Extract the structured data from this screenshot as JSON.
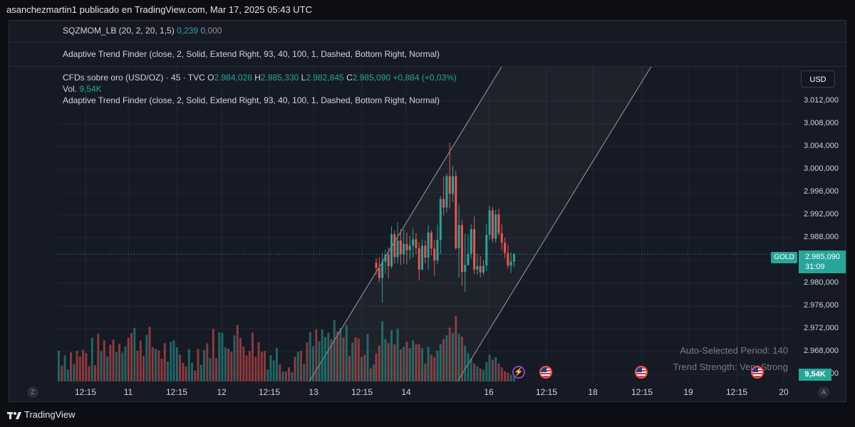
{
  "header": {
    "publisher_line": "asanchezmartin1 publicado en TradingView.com, Mar 17, 2025 05:43 UTC"
  },
  "indicator_panes": [
    {
      "name": "SQZMOM_LB (20, 2, 20, 1,5)",
      "value1": "0,239",
      "value2": "0,000"
    },
    {
      "name": "Adaptive Trend Finder (close, 2, Solid, Extend Right, 93, 40, 100, 1, Dashed, Bottom Right, Normal)"
    }
  ],
  "legend": {
    "symbol": "CFDs sobre oro (USD/OZ) · 45 · TVC",
    "o_label": "O",
    "o_value": "2.984,028",
    "h_label": "H",
    "h_value": "2.985,330",
    "l_label": "L",
    "l_value": "2.982,845",
    "c_label": "C",
    "c_value": "2.985,090",
    "change": "+0,884 (+0,03%)",
    "vol_label": "Vol.",
    "vol_value": "9,54K",
    "indicator": "Adaptive Trend Finder (close, 2, Solid, Extend Right, 93, 40, 100, 1, Dashed, Bottom Right, Normal)"
  },
  "price_axis": {
    "currency_button": "USD",
    "ticks": [
      "3.012,000",
      "3.008,000",
      "3.004,000",
      "3.000,000",
      "2.996,000",
      "2.992,000",
      "2.988,000",
      "2.984,000",
      "2.980,000",
      "2.976,000",
      "2.972,000",
      "2.968,000",
      "2.964,000"
    ],
    "current_price": "2.985,090",
    "countdown": "31:09",
    "symbol_tag": "GOLD",
    "volume_tag": "9,54K"
  },
  "time_axis": {
    "left_button": "Z",
    "right_button": "A",
    "labels": [
      "12:15",
      "11",
      "12:15",
      "12",
      "12:15",
      "13",
      "12:15",
      "14",
      "16",
      "12:15",
      "18",
      "12:15",
      "19",
      "12:15",
      "20"
    ]
  },
  "stats": {
    "period": "Auto-Selected Period: 140",
    "strength": "Trend Strength: Very Strong"
  },
  "footer": {
    "brand": "TradingView"
  },
  "colors": {
    "up": "#26a69a",
    "down": "#ef5350",
    "background": "#161a24",
    "grid": "#232734"
  },
  "icons": [
    "tradingview-logo-icon",
    "lightning-event-icon",
    "us-flag-event-icon"
  ],
  "chart_data": {
    "type": "candlestick",
    "x_axis": "time (45 min bars)",
    "ylim": [
      2962,
      3016
    ],
    "current_price": 2985.09,
    "candles": [
      {
        "o": 2983.6,
        "h": 2984.4,
        "l": 2981.5,
        "c": 2982.7,
        "v": 0.22
      },
      {
        "o": 2982.7,
        "h": 2984.6,
        "l": 2980.2,
        "c": 2980.9,
        "v": 0.28
      },
      {
        "o": 2980.9,
        "h": 2985.4,
        "l": 2976.6,
        "c": 2983.8,
        "v": 0.47
      },
      {
        "o": 2983.8,
        "h": 2985.9,
        "l": 2981.7,
        "c": 2985.0,
        "v": 0.33
      },
      {
        "o": 2985.0,
        "h": 2986.3,
        "l": 2980.8,
        "c": 2983.0,
        "v": 0.3
      },
      {
        "o": 2983.0,
        "h": 2990.0,
        "l": 2982.6,
        "c": 2988.6,
        "v": 0.4
      },
      {
        "o": 2988.6,
        "h": 2989.3,
        "l": 2983.4,
        "c": 2984.6,
        "v": 0.29
      },
      {
        "o": 2984.6,
        "h": 2990.7,
        "l": 2983.5,
        "c": 2987.5,
        "v": 0.41
      },
      {
        "o": 2987.5,
        "h": 2989.5,
        "l": 2983.2,
        "c": 2985.1,
        "v": 0.25
      },
      {
        "o": 2985.1,
        "h": 2989.5,
        "l": 2983.4,
        "c": 2986.9,
        "v": 0.27
      },
      {
        "o": 2986.9,
        "h": 2988.9,
        "l": 2983.3,
        "c": 2985.8,
        "v": 0.31
      },
      {
        "o": 2985.8,
        "h": 2988.3,
        "l": 2984.2,
        "c": 2986.6,
        "v": 0.26
      },
      {
        "o": 2986.6,
        "h": 2989.6,
        "l": 2984.5,
        "c": 2987.7,
        "v": 0.32
      },
      {
        "o": 2987.7,
        "h": 2988.8,
        "l": 2985.1,
        "c": 2986.2,
        "v": 0.29
      },
      {
        "o": 2986.2,
        "h": 2987.2,
        "l": 2980.5,
        "c": 2982.4,
        "v": 0.29
      },
      {
        "o": 2982.4,
        "h": 2987.7,
        "l": 2982.2,
        "c": 2986.6,
        "v": 0.26
      },
      {
        "o": 2986.6,
        "h": 2987.5,
        "l": 2983.5,
        "c": 2984.5,
        "v": 0.14
      },
      {
        "o": 2984.5,
        "h": 2990.2,
        "l": 2982.4,
        "c": 2988.9,
        "v": 0.27
      },
      {
        "o": 2988.9,
        "h": 2989.3,
        "l": 2984.9,
        "c": 2986.1,
        "v": 0.21
      },
      {
        "o": 2986.1,
        "h": 2987.5,
        "l": 2981.3,
        "c": 2984.0,
        "v": 0.19
      },
      {
        "o": 2984.0,
        "h": 2990.3,
        "l": 2983.4,
        "c": 2987.6,
        "v": 0.24
      },
      {
        "o": 2987.6,
        "h": 2995.3,
        "l": 2985.1,
        "c": 2994.8,
        "v": 0.29
      },
      {
        "o": 2994.8,
        "h": 2998.8,
        "l": 2991.9,
        "c": 2993.3,
        "v": 0.33
      },
      {
        "o": 2993.3,
        "h": 2999.3,
        "l": 2992.4,
        "c": 2998.8,
        "v": 0.36
      },
      {
        "o": 2998.8,
        "h": 3004.7,
        "l": 2993.1,
        "c": 2995.7,
        "v": 0.42
      },
      {
        "o": 2995.7,
        "h": 3000.6,
        "l": 2994.3,
        "c": 2998.8,
        "v": 0.38
      },
      {
        "o": 2998.8,
        "h": 2999.8,
        "l": 2985.9,
        "c": 2986.2,
        "v": 0.51
      },
      {
        "o": 2986.2,
        "h": 2993.8,
        "l": 2981.0,
        "c": 2990.2,
        "v": 0.37
      },
      {
        "o": 2990.2,
        "h": 2991.2,
        "l": 2979.5,
        "c": 2982.0,
        "v": 0.35
      },
      {
        "o": 2982.0,
        "h": 2988.7,
        "l": 2978.5,
        "c": 2983.2,
        "v": 0.28
      },
      {
        "o": 2983.2,
        "h": 2988.6,
        "l": 2983.1,
        "c": 2985.2,
        "v": 0.22
      },
      {
        "o": 2985.2,
        "h": 2990.4,
        "l": 2984.3,
        "c": 2989.5,
        "v": 0.18
      },
      {
        "o": 2989.5,
        "h": 2991.7,
        "l": 2981.6,
        "c": 2982.4,
        "v": 0.14
      },
      {
        "o": 2982.4,
        "h": 2985.1,
        "l": 2981.5,
        "c": 2983.0,
        "v": 0.12
      },
      {
        "o": 2983.0,
        "h": 2984.8,
        "l": 2981.0,
        "c": 2981.9,
        "v": 0.1
      },
      {
        "o": 2981.9,
        "h": 2984.1,
        "l": 2981.4,
        "c": 2983.1,
        "v": 0.09
      },
      {
        "o": 2983.1,
        "h": 2990.4,
        "l": 2982.1,
        "c": 2988.5,
        "v": 0.15
      },
      {
        "o": 2988.5,
        "h": 2993.6,
        "l": 2987.6,
        "c": 2992.8,
        "v": 0.21
      },
      {
        "o": 2992.8,
        "h": 2993.4,
        "l": 2987.2,
        "c": 2987.8,
        "v": 0.17
      },
      {
        "o": 2987.8,
        "h": 2992.9,
        "l": 2987.1,
        "c": 2992.1,
        "v": 0.19
      },
      {
        "o": 2992.1,
        "h": 2993.1,
        "l": 2988.3,
        "c": 2988.8,
        "v": 0.14
      },
      {
        "o": 2988.8,
        "h": 2990.3,
        "l": 2985.8,
        "c": 2987.1,
        "v": 0.11
      },
      {
        "o": 2987.1,
        "h": 2988.0,
        "l": 2984.4,
        "c": 2985.3,
        "v": 0.08
      },
      {
        "o": 2985.3,
        "h": 2986.7,
        "l": 2982.6,
        "c": 2983.1,
        "v": 0.07
      },
      {
        "o": 2983.1,
        "h": 2985.4,
        "l": 2981.8,
        "c": 2983.8,
        "v": 0.05
      },
      {
        "o": 2983.8,
        "h": 2985.3,
        "l": 2982.8,
        "c": 2985.1,
        "v": 0.04
      }
    ]
  }
}
